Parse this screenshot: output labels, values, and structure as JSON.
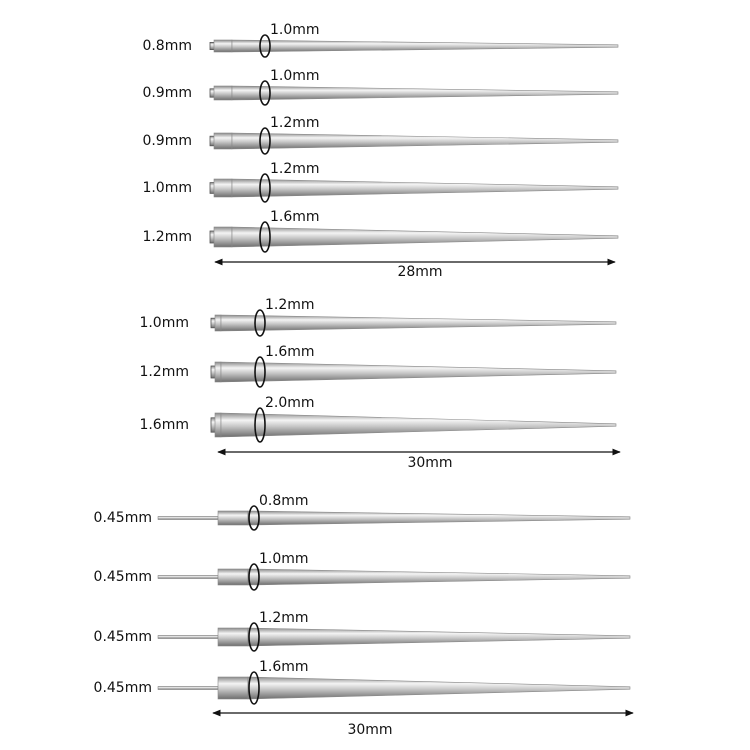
{
  "groups": [
    {
      "items": [
        {
          "pin": "0.8mm",
          "ring": "1.0mm"
        },
        {
          "pin": "0.9mm",
          "ring": "1.0mm"
        },
        {
          "pin": "0.9mm",
          "ring": "1.2mm"
        },
        {
          "pin": "1.0mm",
          "ring": "1.2mm"
        },
        {
          "pin": "1.2mm",
          "ring": "1.6mm"
        }
      ],
      "length": "28mm"
    },
    {
      "items": [
        {
          "pin": "1.0mm",
          "ring": "1.2mm"
        },
        {
          "pin": "1.2mm",
          "ring": "1.6mm"
        },
        {
          "pin": "1.6mm",
          "ring": "2.0mm"
        }
      ],
      "length": "30mm"
    },
    {
      "items": [
        {
          "pin": "0.45mm",
          "ring": "0.8mm"
        },
        {
          "pin": "0.45mm",
          "ring": "1.0mm"
        },
        {
          "pin": "0.45mm",
          "ring": "1.2mm"
        },
        {
          "pin": "0.45mm",
          "ring": "1.6mm"
        }
      ],
      "length": "30mm"
    }
  ]
}
